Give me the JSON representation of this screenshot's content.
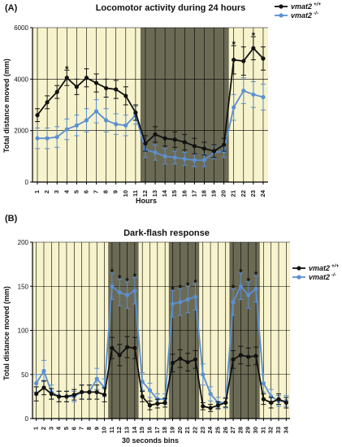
{
  "colors": {
    "background": "#f7f3cc",
    "dark_period": "#6b6a55",
    "wildtype": "#111111",
    "knockout": "#5b8fd1",
    "grid": "#000000"
  },
  "chart_data": [
    {
      "type": "line",
      "panel_label": "(A)",
      "title": "Locomotor activity during 24 hours",
      "xlabel": "Hours",
      "ylabel": "Total distance moved (mm)",
      "ylim": [
        0,
        6000
      ],
      "yticks": [
        0,
        2000,
        4000,
        6000
      ],
      "x": [
        1,
        2,
        3,
        4,
        5,
        6,
        7,
        8,
        9,
        10,
        11,
        12,
        13,
        14,
        15,
        16,
        17,
        18,
        19,
        20,
        21,
        22,
        23,
        24
      ],
      "shaded_region": [
        11.5,
        20.5
      ],
      "legend": {
        "position": "top-right"
      },
      "series": [
        {
          "name": "vmat2",
          "superscript": "+/+",
          "color": "#111111",
          "values": [
            2600,
            3100,
            3500,
            4050,
            3700,
            4050,
            3850,
            3650,
            3600,
            3350,
            2700,
            1500,
            1850,
            1700,
            1650,
            1550,
            1400,
            1300,
            1200,
            1450,
            4750,
            4700,
            5200,
            4800
          ],
          "errors": [
            250,
            250,
            250,
            300,
            300,
            350,
            350,
            350,
            350,
            350,
            300,
            300,
            300,
            300,
            300,
            300,
            300,
            250,
            250,
            250,
            550,
            550,
            450,
            450
          ]
        },
        {
          "name": "vmat2",
          "superscript": "-/-",
          "color": "#5b8fd1",
          "values": [
            1700,
            1700,
            1750,
            2050,
            2200,
            2400,
            2750,
            2400,
            2250,
            2200,
            2600,
            1250,
            1150,
            1000,
            950,
            900,
            850,
            850,
            1150,
            1200,
            2900,
            3550,
            3400,
            3300
          ],
          "errors": [
            400,
            400,
            400,
            400,
            400,
            450,
            450,
            450,
            400,
            400,
            350,
            300,
            300,
            300,
            250,
            250,
            250,
            250,
            250,
            250,
            500,
            500,
            500,
            500
          ]
        }
      ],
      "significance_markers": [
        4,
        21,
        23
      ]
    },
    {
      "type": "line",
      "panel_label": "(B)",
      "title": "Dark-flash response",
      "xlabel": "30 seconds bins",
      "ylabel": "Total distance moved (mm)",
      "ylim": [
        0,
        200
      ],
      "yticks": [
        0,
        50,
        100,
        150,
        200
      ],
      "x": [
        1,
        2,
        3,
        4,
        5,
        6,
        7,
        8,
        9,
        10,
        11,
        12,
        13,
        14,
        15,
        16,
        17,
        18,
        19,
        20,
        21,
        22,
        23,
        24,
        25,
        26,
        27,
        28,
        29,
        30,
        31,
        32,
        33,
        34
      ],
      "shaded_regions": [
        [
          10.5,
          14.5
        ],
        [
          18.5,
          22.5
        ],
        [
          26.5,
          30.5
        ]
      ],
      "legend": {
        "position": "upper-right"
      },
      "series": [
        {
          "name": "vmat2",
          "superscript": "+/+",
          "color": "#111111",
          "values": [
            28,
            35,
            28,
            25,
            25,
            27,
            30,
            30,
            30,
            27,
            80,
            72,
            81,
            80,
            25,
            15,
            17,
            18,
            63,
            68,
            64,
            67,
            14,
            12,
            15,
            18,
            67,
            72,
            70,
            71,
            22,
            18,
            22,
            18
          ],
          "errors": [
            8,
            8,
            6,
            6,
            6,
            6,
            8,
            8,
            8,
            8,
            12,
            12,
            12,
            12,
            6,
            5,
            5,
            5,
            10,
            10,
            10,
            10,
            4,
            4,
            4,
            5,
            10,
            10,
            10,
            10,
            6,
            6,
            6,
            6
          ]
        },
        {
          "name": "vmat2",
          "superscript": "-/-",
          "color": "#5b8fd1",
          "values": [
            40,
            54,
            30,
            25,
            25,
            25,
            30,
            30,
            45,
            35,
            150,
            143,
            140,
            145,
            42,
            32,
            22,
            22,
            130,
            132,
            135,
            138,
            50,
            28,
            18,
            18,
            132,
            150,
            140,
            147,
            40,
            25,
            20,
            20
          ],
          "errors": [
            10,
            12,
            8,
            6,
            6,
            6,
            8,
            8,
            12,
            10,
            15,
            15,
            15,
            15,
            10,
            8,
            6,
            6,
            15,
            15,
            15,
            15,
            12,
            8,
            6,
            6,
            15,
            15,
            15,
            15,
            10,
            8,
            6,
            6
          ]
        }
      ],
      "significance_markers": [
        11,
        12,
        13,
        14,
        19,
        20,
        21,
        22,
        27,
        28,
        29,
        30
      ]
    }
  ]
}
